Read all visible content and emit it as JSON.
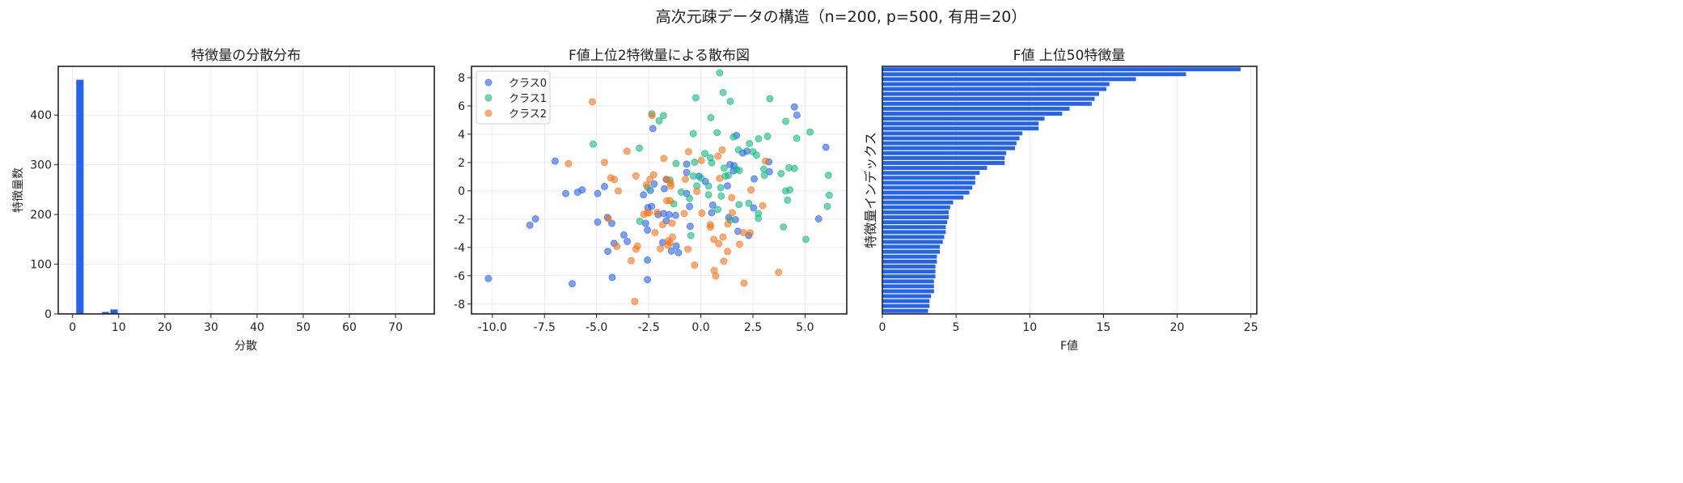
{
  "suptitle": "高次元疎データの構造（n=200, p=500, 有用=20）",
  "colors": {
    "bar": "#2563eb",
    "class0": "#2563eb",
    "class1": "#10b981",
    "class2": "#f97316",
    "grid": "#ebebeb",
    "axis": "#222222"
  },
  "chart_data": [
    {
      "type": "bar",
      "subtype": "histogram",
      "title": "特徴量の分散分布",
      "xlabel": "分散",
      "ylabel": "特徴量数",
      "bins": [
        {
          "x0": 0.8,
          "x1": 2.4,
          "count": 471
        },
        {
          "x0": 6.4,
          "x1": 7.9,
          "count": 4
        },
        {
          "x0": 8.2,
          "x1": 9.8,
          "count": 9
        }
      ],
      "xlim": [
        -3.1,
        78.4
      ],
      "ylim": [
        0,
        498
      ],
      "xticks": [
        0,
        10,
        20,
        30,
        40,
        50,
        60,
        70
      ],
      "yticks": [
        0,
        100,
        200,
        300,
        400
      ],
      "grid": true
    },
    {
      "type": "scatter",
      "title": "F値上位2特徴量による散布図",
      "xlim": [
        -11.0,
        7.0
      ],
      "ylim": [
        -8.7,
        8.8
      ],
      "xticks": [
        "-10.0",
        "-7.5",
        "-5.0",
        "-2.5",
        "0.0",
        "2.5",
        "5.0"
      ],
      "yticks": [
        "-8",
        "-6",
        "-4",
        "-2",
        "0",
        "2",
        "4",
        "6",
        "8"
      ],
      "grid": true,
      "legend": "top-left",
      "series": [
        {
          "name": "クラス0",
          "color_key": "class0",
          "points": [
            [
              -10.19,
              -6.2
            ],
            [
              -2.3,
              4.4
            ],
            [
              -6.99,
              2.1
            ],
            [
              -2.24,
              0.48
            ],
            [
              -2.42,
              0.03
            ],
            [
              -1.66,
              0.81
            ],
            [
              -6.48,
              -0.19
            ],
            [
              -5.91,
              -0.1
            ],
            [
              -5.69,
              0.07
            ],
            [
              -4.95,
              -0.19
            ],
            [
              -4.62,
              0.31
            ],
            [
              -2.75,
              -0.28
            ],
            [
              -2.54,
              -1.19
            ],
            [
              -2.36,
              -1.1
            ],
            [
              -2.05,
              -1.68
            ],
            [
              -1.79,
              -1.6
            ],
            [
              -7.93,
              -1.98
            ],
            [
              -8.2,
              -2.43
            ],
            [
              -4.95,
              -2.21
            ],
            [
              -4.48,
              -1.88
            ],
            [
              -4.27,
              -2.3
            ],
            [
              -2.65,
              -2.3
            ],
            [
              -2.56,
              -2.78
            ],
            [
              -3.69,
              -3.12
            ],
            [
              -3.53,
              -3.58
            ],
            [
              -4.16,
              -3.71
            ],
            [
              -4.46,
              -4.28
            ],
            [
              -1.83,
              -3.65
            ],
            [
              -2.56,
              -4.89
            ],
            [
              -4.25,
              -6.12
            ],
            [
              -6.17,
              -6.56
            ],
            [
              -2.56,
              -6.28
            ],
            [
              4.49,
              5.93
            ],
            [
              4.61,
              5.35
            ],
            [
              1.71,
              3.91
            ],
            [
              6.0,
              3.08
            ],
            [
              2.01,
              2.67
            ],
            [
              2.21,
              2.8
            ],
            [
              -0.68,
              1.89
            ],
            [
              3.26,
              2.05
            ],
            [
              1.4,
              1.86
            ],
            [
              1.6,
              1.77
            ],
            [
              1.56,
              1.41
            ],
            [
              3.29,
              1.35
            ],
            [
              -0.68,
              1.3
            ],
            [
              -0.09,
              1.04
            ],
            [
              0.22,
              0.66
            ],
            [
              1.28,
              0.35
            ],
            [
              -1.75,
              0.15
            ],
            [
              2.56,
              0.84
            ],
            [
              -0.68,
              -0.19
            ],
            [
              -0.54,
              -1.11
            ],
            [
              0.57,
              -1.01
            ],
            [
              0.52,
              -1.55
            ],
            [
              2.53,
              -1.2
            ],
            [
              -1.52,
              -1.68
            ],
            [
              -1.21,
              -1.73
            ],
            [
              -1.66,
              -2.12
            ],
            [
              1.34,
              -1.89
            ],
            [
              1.66,
              -2.04
            ],
            [
              5.65,
              -1.98
            ],
            [
              -0.51,
              -2.51
            ],
            [
              1.78,
              -2.86
            ],
            [
              2.3,
              -3.16
            ],
            [
              -1.18,
              -3.9
            ],
            [
              -1.41,
              -4.26
            ],
            [
              -1.07,
              -4.37
            ]
          ]
        },
        {
          "name": "クラス1",
          "color_key": "class1",
          "points": [
            [
              -2.35,
              5.45
            ],
            [
              -2.0,
              4.95
            ],
            [
              -1.79,
              5.32
            ],
            [
              -5.16,
              3.3
            ],
            [
              -2.95,
              3.02
            ],
            [
              -2.56,
              0.25
            ],
            [
              -2.93,
              -2.15
            ],
            [
              0.9,
              8.34
            ],
            [
              1.07,
              6.95
            ],
            [
              1.41,
              6.32
            ],
            [
              -0.24,
              6.58
            ],
            [
              3.31,
              6.51
            ],
            [
              0.48,
              5.17
            ],
            [
              4.07,
              4.91
            ],
            [
              5.24,
              4.16
            ],
            [
              -0.36,
              4.04
            ],
            [
              0.78,
              4.12
            ],
            [
              1.56,
              3.81
            ],
            [
              4.6,
              3.72
            ],
            [
              2.77,
              3.68
            ],
            [
              3.2,
              3.85
            ],
            [
              2.33,
              3.34
            ],
            [
              1.81,
              2.89
            ],
            [
              2.49,
              2.77
            ],
            [
              2.67,
              2.53
            ],
            [
              0.19,
              2.64
            ],
            [
              0.46,
              2.34
            ],
            [
              0.52,
              1.98
            ],
            [
              -1.19,
              1.93
            ],
            [
              -0.3,
              2.02
            ],
            [
              1.71,
              1.51
            ],
            [
              1.85,
              1.44
            ],
            [
              1.12,
              1.61
            ],
            [
              3.02,
              1.54
            ],
            [
              3.05,
              1.1
            ],
            [
              3.85,
              1.22
            ],
            [
              4.23,
              1.63
            ],
            [
              4.49,
              1.58
            ],
            [
              6.12,
              1.1
            ],
            [
              -0.36,
              1.05
            ],
            [
              0.01,
              0.89
            ],
            [
              1.18,
              1.04
            ],
            [
              1.32,
              1.1
            ],
            [
              0.95,
              0.22
            ],
            [
              -0.19,
              0.35
            ],
            [
              0.37,
              0.34
            ],
            [
              -1.48,
              0.76
            ],
            [
              -0.94,
              -0.09
            ],
            [
              -0.54,
              -0.54
            ],
            [
              0.37,
              -0.28
            ],
            [
              0.98,
              -0.37
            ],
            [
              4.07,
              -0.01
            ],
            [
              4.27,
              0.07
            ],
            [
              4.16,
              -0.66
            ],
            [
              6.16,
              -0.31
            ],
            [
              -1.3,
              -0.92
            ],
            [
              1.83,
              -0.97
            ],
            [
              2.3,
              -0.88
            ],
            [
              6.07,
              -1.1
            ],
            [
              0.81,
              -1.32
            ],
            [
              2.76,
              -1.6
            ],
            [
              2.76,
              -1.95
            ],
            [
              1.42,
              -2.07
            ],
            [
              3.96,
              -2.55
            ],
            [
              -0.48,
              -3.16
            ],
            [
              5.04,
              -3.43
            ]
          ]
        },
        {
          "name": "クラス2",
          "color_key": "class2",
          "points": [
            [
              -5.2,
              6.29
            ],
            [
              -2.34,
              5.33
            ],
            [
              -3.54,
              2.8
            ],
            [
              -6.35,
              1.92
            ],
            [
              -4.62,
              2.01
            ],
            [
              -4.32,
              0.92
            ],
            [
              -4.15,
              0.79
            ],
            [
              -3.11,
              1.05
            ],
            [
              -2.26,
              1.14
            ],
            [
              -2.44,
              0.81
            ],
            [
              -2.61,
              0.42
            ],
            [
              -3.96,
              -0.01
            ],
            [
              -2.73,
              -1.66
            ],
            [
              -2.56,
              -1.55
            ],
            [
              -2.48,
              -1.55
            ],
            [
              -2.09,
              -1.52
            ],
            [
              -4.44,
              -1.95
            ],
            [
              -2.2,
              -2.95
            ],
            [
              -1.83,
              -2.39
            ],
            [
              -4.03,
              -3.93
            ],
            [
              -3.04,
              -3.9
            ],
            [
              -3.11,
              -4.12
            ],
            [
              -1.94,
              -4.09
            ],
            [
              -3.34,
              -4.94
            ],
            [
              -3.17,
              -7.82
            ],
            [
              1.03,
              2.89
            ],
            [
              0.82,
              2.45
            ],
            [
              -0.59,
              2.77
            ],
            [
              0.02,
              2.15
            ],
            [
              -1.77,
              2.29
            ],
            [
              3.1,
              2.1
            ],
            [
              -0.74,
              0.82
            ],
            [
              0.9,
              0.88
            ],
            [
              -0.19,
              -0.04
            ],
            [
              -1.64,
              0.81
            ],
            [
              -1.45,
              0.54
            ],
            [
              -1.44,
              0.34
            ],
            [
              2.41,
              0.07
            ],
            [
              1.48,
              -0.48
            ],
            [
              -1.63,
              -0.7
            ],
            [
              -1.47,
              -0.7
            ],
            [
              2.97,
              -1.05
            ],
            [
              -0.8,
              -1.6
            ],
            [
              0.05,
              -1.58
            ],
            [
              -1.38,
              -2.29
            ],
            [
              1.51,
              -1.55
            ],
            [
              1.3,
              -2.34
            ],
            [
              0.46,
              -2.39
            ],
            [
              0.46,
              -2.56
            ],
            [
              2.04,
              -2.95
            ],
            [
              2.36,
              -2.97
            ],
            [
              -1.36,
              -3.27
            ],
            [
              -1.56,
              -3.53
            ],
            [
              -1.48,
              -3.68
            ],
            [
              -1.58,
              -3.85
            ],
            [
              0.62,
              -3.43
            ],
            [
              1.06,
              -3.27
            ],
            [
              0.86,
              -3.74
            ],
            [
              1.86,
              -3.78
            ],
            [
              -0.62,
              -4.13
            ],
            [
              1.28,
              -4.29
            ],
            [
              -0.3,
              -5.25
            ],
            [
              1.1,
              -4.97
            ],
            [
              0.64,
              -5.64
            ],
            [
              0.72,
              -6.02
            ],
            [
              3.73,
              -5.76
            ],
            [
              2.07,
              -6.52
            ]
          ]
        }
      ]
    },
    {
      "type": "bar",
      "orientation": "horizontal",
      "title": "F値 上位50特徴量",
      "xlabel": "F値",
      "ylabel": "特徴量インデックス",
      "values": [
        24.3,
        20.6,
        17.2,
        15.4,
        15.2,
        14.7,
        14.4,
        14.2,
        12.7,
        12.2,
        11.0,
        10.6,
        10.6,
        9.5,
        9.3,
        9.1,
        9.0,
        8.4,
        8.3,
        8.3,
        7.1,
        6.6,
        6.3,
        6.3,
        6.1,
        5.9,
        5.5,
        4.8,
        4.6,
        4.5,
        4.5,
        4.4,
        4.3,
        4.3,
        4.2,
        4.1,
        3.9,
        3.9,
        3.7,
        3.7,
        3.6,
        3.6,
        3.6,
        3.5,
        3.5,
        3.5,
        3.3,
        3.2,
        3.2,
        3.1
      ],
      "xlim": [
        0,
        25.4
      ],
      "xticks": [
        0,
        5,
        10,
        15,
        20,
        25
      ],
      "yticks_visible": false,
      "grid": true
    }
  ]
}
